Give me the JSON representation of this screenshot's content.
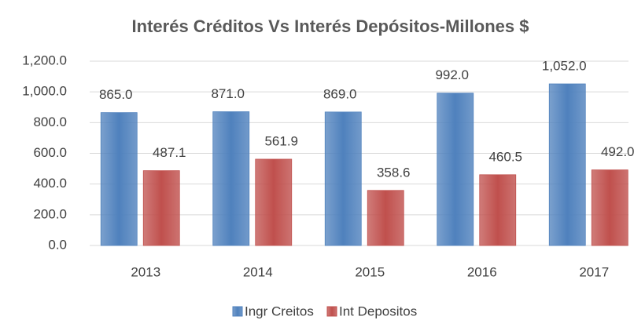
{
  "chart_data": {
    "type": "bar",
    "title": "Interés Créditos Vs Interés Depósitos-Millones $",
    "categories": [
      "2013",
      "2014",
      "2015",
      "2016",
      "2017"
    ],
    "series": [
      {
        "name": "Ingr Creitos",
        "color": "#4f81bd",
        "values": [
          865,
          871,
          869,
          992,
          1052
        ],
        "value_labels": [
          "865.0",
          "871.0",
          "869.0",
          "992.0",
          "1,052.0"
        ]
      },
      {
        "name": "Int Depositos",
        "color": "#c0504d",
        "values": [
          487.1,
          561.9,
          358.6,
          460.5,
          492
        ],
        "value_labels": [
          "487.1",
          "561.9",
          "358.6",
          "460.5",
          "492.0"
        ]
      }
    ],
    "ylim": [
      0,
      1200
    ],
    "yticks": [
      {
        "value": 0,
        "label": "0.0"
      },
      {
        "value": 200,
        "label": "200.0"
      },
      {
        "value": 400,
        "label": "400.0"
      },
      {
        "value": 600,
        "label": "600.0"
      },
      {
        "value": 800,
        "label": "800.0"
      },
      {
        "value": 1000,
        "label": "1,000.0"
      },
      {
        "value": 1200,
        "label": "1,200.0"
      }
    ],
    "grid": true,
    "legend": "bottom"
  }
}
